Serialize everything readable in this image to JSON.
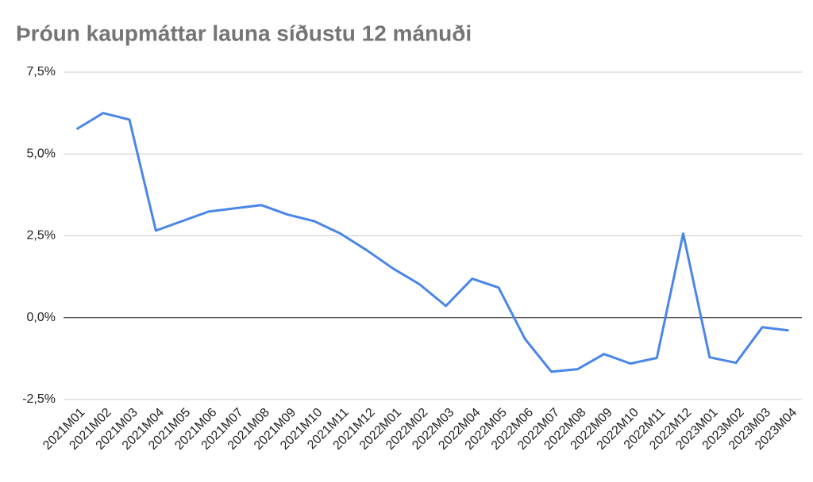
{
  "chart_data": {
    "type": "line",
    "title": "Þróun kaupmáttar launa síðustu 12 mánuði",
    "categories": [
      "2021M01",
      "2021M02",
      "2021M03",
      "2021M04",
      "2021M05",
      "2021M06",
      "2021M07",
      "2021M08",
      "2021M09",
      "2021M10",
      "2021M11",
      "2021M12",
      "2022M01",
      "2022M02",
      "2022M03",
      "2022M04",
      "2022M05",
      "2022M06",
      "2022M07",
      "2022M08",
      "2022M09",
      "2022M10",
      "2022M11",
      "2022M12",
      "2023M01",
      "2023M02",
      "2023M03",
      "2023M04"
    ],
    "values": [
      5.76,
      6.25,
      6.05,
      2.66,
      2.95,
      3.24,
      3.34,
      3.44,
      3.15,
      2.95,
      2.57,
      2.06,
      1.5,
      1.02,
      0.36,
      1.19,
      0.92,
      -0.65,
      -1.65,
      -1.57,
      -1.11,
      -1.4,
      -1.23,
      2.57,
      -1.21,
      -1.38,
      -0.29,
      -0.39
    ],
    "color": "#4a86e8",
    "ylim": [
      -2.5,
      7.5
    ],
    "yticks": [
      {
        "value": -2.5,
        "label": "-2,5%"
      },
      {
        "value": 0,
        "label": "0,0%"
      },
      {
        "value": 2.5,
        "label": "2,5%"
      },
      {
        "value": 5,
        "label": "5,0%"
      },
      {
        "value": 7.5,
        "label": "7,5%"
      }
    ],
    "grid": true
  }
}
